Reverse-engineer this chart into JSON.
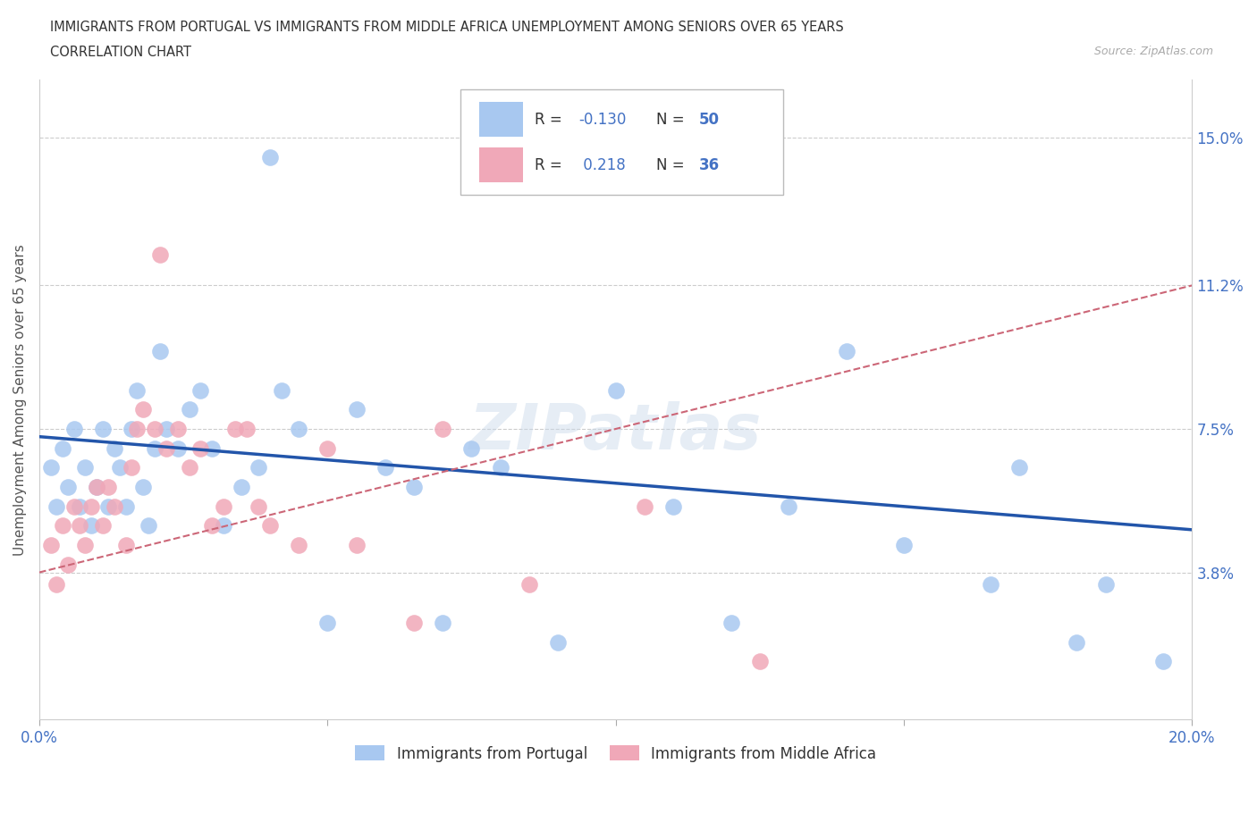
{
  "title_line1": "IMMIGRANTS FROM PORTUGAL VS IMMIGRANTS FROM MIDDLE AFRICA UNEMPLOYMENT AMONG SENIORS OVER 65 YEARS",
  "title_line2": "CORRELATION CHART",
  "source": "Source: ZipAtlas.com",
  "ylabel": "Unemployment Among Seniors over 65 years",
  "ytick_values": [
    3.8,
    7.5,
    11.2,
    15.0
  ],
  "ytick_labels": [
    "3.8%",
    "7.5%",
    "11.2%",
    "15.0%"
  ],
  "xlim": [
    0.0,
    20.0
  ],
  "ylim": [
    0.0,
    16.5
  ],
  "color_portugal": "#a8c8f0",
  "color_portugal_line": "#2255aa",
  "color_africa": "#f0a8b8",
  "color_africa_line": "#cc6677",
  "portugal_x": [
    0.2,
    0.3,
    0.4,
    0.5,
    0.6,
    0.7,
    0.8,
    0.9,
    1.0,
    1.1,
    1.2,
    1.3,
    1.4,
    1.5,
    1.6,
    1.7,
    1.8,
    1.9,
    2.0,
    2.1,
    2.2,
    2.4,
    2.6,
    2.8,
    3.0,
    3.2,
    3.5,
    3.8,
    4.0,
    4.2,
    4.5,
    5.0,
    5.5,
    6.0,
    6.5,
    7.0,
    7.5,
    8.0,
    9.0,
    10.0,
    11.0,
    12.0,
    13.0,
    14.0,
    15.0,
    16.5,
    17.0,
    18.0,
    18.5,
    19.5
  ],
  "portugal_y": [
    6.5,
    5.5,
    7.0,
    6.0,
    7.5,
    5.5,
    6.5,
    5.0,
    6.0,
    7.5,
    5.5,
    7.0,
    6.5,
    5.5,
    7.5,
    8.5,
    6.0,
    5.0,
    7.0,
    9.5,
    7.5,
    7.0,
    8.0,
    8.5,
    7.0,
    5.0,
    6.0,
    6.5,
    14.5,
    8.5,
    7.5,
    2.5,
    8.0,
    6.5,
    6.0,
    2.5,
    7.0,
    6.5,
    2.0,
    8.5,
    5.5,
    2.5,
    5.5,
    9.5,
    4.5,
    3.5,
    6.5,
    2.0,
    3.5,
    1.5
  ],
  "africa_x": [
    0.2,
    0.3,
    0.4,
    0.5,
    0.6,
    0.7,
    0.8,
    0.9,
    1.0,
    1.1,
    1.2,
    1.3,
    1.5,
    1.6,
    1.7,
    1.8,
    2.0,
    2.1,
    2.2,
    2.4,
    2.6,
    2.8,
    3.0,
    3.2,
    3.4,
    3.6,
    3.8,
    4.0,
    4.5,
    5.0,
    5.5,
    6.5,
    7.0,
    8.5,
    10.5,
    12.5
  ],
  "africa_y": [
    4.5,
    3.5,
    5.0,
    4.0,
    5.5,
    5.0,
    4.5,
    5.5,
    6.0,
    5.0,
    6.0,
    5.5,
    4.5,
    6.5,
    7.5,
    8.0,
    7.5,
    12.0,
    7.0,
    7.5,
    6.5,
    7.0,
    5.0,
    5.5,
    7.5,
    7.5,
    5.5,
    5.0,
    4.5,
    7.0,
    4.5,
    2.5,
    7.5,
    3.5,
    5.5,
    1.5
  ]
}
